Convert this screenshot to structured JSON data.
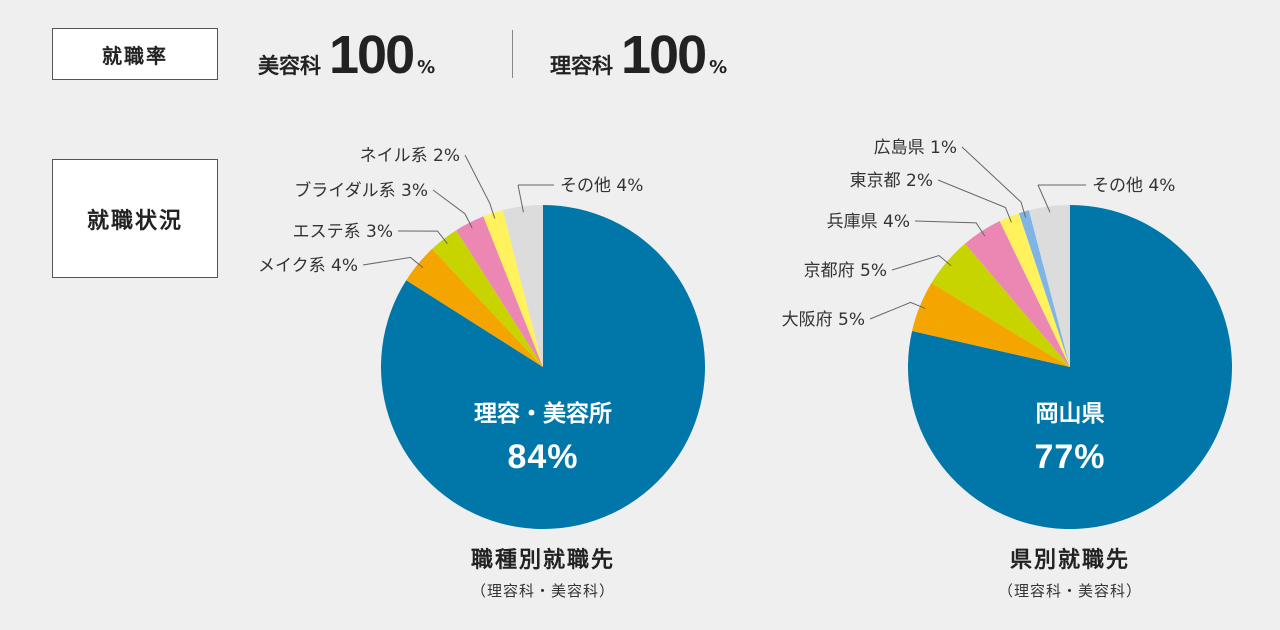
{
  "header": {
    "employment_rate_label": "就職率",
    "rates": [
      {
        "dept": "美容科",
        "value": "100",
        "unit": "%"
      },
      {
        "dept": "理容科",
        "value": "100",
        "unit": "%"
      }
    ],
    "status_label": "就職状況"
  },
  "chart_data": [
    {
      "type": "pie",
      "title": "職種別就職先",
      "subtitle": "（理容科・美容科）",
      "center_label": "理容・美容所",
      "center_value": "84%",
      "slices": [
        {
          "label": "理容・美容所",
          "value": 84,
          "color": "#0077a8"
        },
        {
          "label": "メイク系",
          "value": 4,
          "color": "#f5a500",
          "text": "メイク系 4%"
        },
        {
          "label": "エステ系",
          "value": 3,
          "color": "#c8d400",
          "text": "エステ系 3%"
        },
        {
          "label": "ブライダル系",
          "value": 3,
          "color": "#ec87b4",
          "text": "ブライダル系 3%"
        },
        {
          "label": "ネイル系",
          "value": 2,
          "color": "#fff25c",
          "text": "ネイル系 2%"
        },
        {
          "label": "その他",
          "value": 4,
          "color": "#dcdcdc",
          "text": "その他 4%"
        }
      ]
    },
    {
      "type": "pie",
      "title": "県別就職先",
      "subtitle": "（理容科・美容科）",
      "center_label": "岡山県",
      "center_value": "77%",
      "slices": [
        {
          "label": "岡山県",
          "value": 77,
          "color": "#0077a8"
        },
        {
          "label": "大阪府",
          "value": 5,
          "color": "#f5a500",
          "text": "大阪府 5%"
        },
        {
          "label": "京都府",
          "value": 5,
          "color": "#c8d400",
          "text": "京都府 5%"
        },
        {
          "label": "兵庫県",
          "value": 4,
          "color": "#ec87b4",
          "text": "兵庫県 4%"
        },
        {
          "label": "東京都",
          "value": 2,
          "color": "#fff25c",
          "text": "東京都 2%"
        },
        {
          "label": "広島県",
          "value": 1,
          "color": "#7fb4e6",
          "text": "広島県 1%"
        },
        {
          "label": "その他",
          "value": 4,
          "color": "#dcdcdc",
          "text": "その他 4%"
        }
      ]
    }
  ]
}
